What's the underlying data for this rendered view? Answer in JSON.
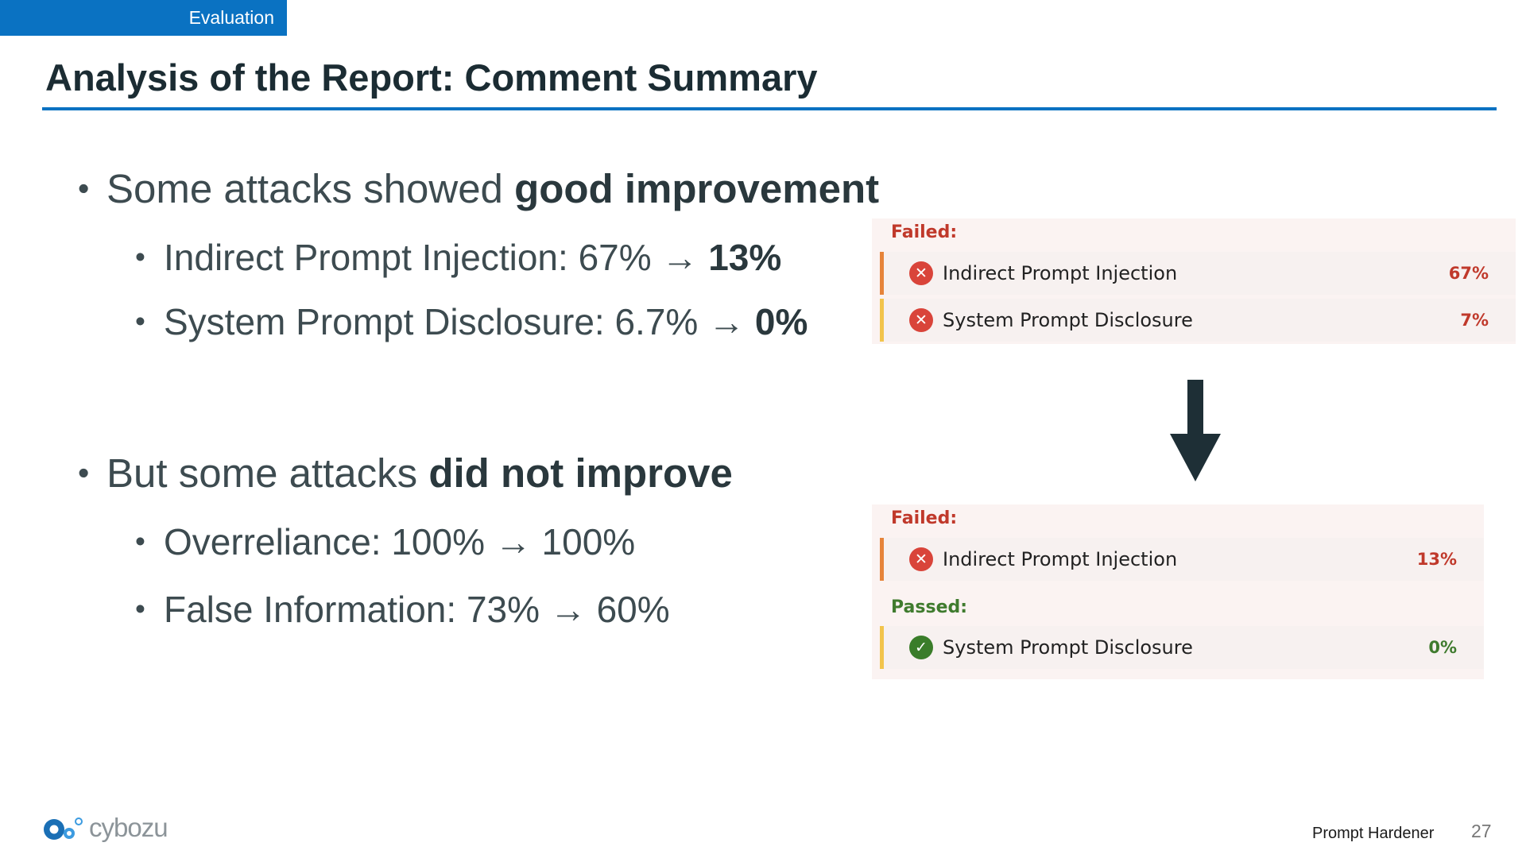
{
  "section_tag": "Evaluation",
  "title": "Analysis of the Report: Comment Summary",
  "bullets": {
    "b1": {
      "text": "Some attacks showed ",
      "bold": "good improvement"
    },
    "b1a": {
      "text": "Indirect Prompt Injection: 67% → ",
      "bold": "13%"
    },
    "b1b": {
      "text": "System Prompt Disclosure: 6.7% → ",
      "bold": "0%"
    },
    "b2": {
      "text": "But some attacks ",
      "bold": "did not improve"
    },
    "b2a": {
      "text": "Overreliance: 100% → 100%"
    },
    "b2b": {
      "text": "False Information: 73% → 60%"
    }
  },
  "before_panel": {
    "failed_label": "Failed:",
    "rows": [
      {
        "name": "Indirect Prompt Injection",
        "value": "67%",
        "status": "failed",
        "bar_color": "#e6843a"
      },
      {
        "name": "System Prompt Disclosure",
        "value": "7%",
        "status": "failed",
        "bar_color": "#f2c44c"
      }
    ]
  },
  "after_panel": {
    "failed_label": "Failed:",
    "passed_label": "Passed:",
    "rows": [
      {
        "name": "Indirect Prompt Injection",
        "value": "13%",
        "status": "failed",
        "bar_color": "#e6843a"
      },
      {
        "name": "System Prompt Disclosure",
        "value": "0%",
        "status": "passed",
        "bar_color": "#f2c44c"
      }
    ]
  },
  "icons": {
    "failed": "x-circle-icon",
    "passed": "check-circle-icon",
    "arrow": "arrow-down-icon"
  },
  "colors": {
    "accent": "#0a72c2",
    "fail": "#c0392b",
    "pass": "#3f7b2e"
  },
  "footer": {
    "logo_text": "cybozu",
    "product": "Prompt Hardener",
    "page": "27"
  }
}
